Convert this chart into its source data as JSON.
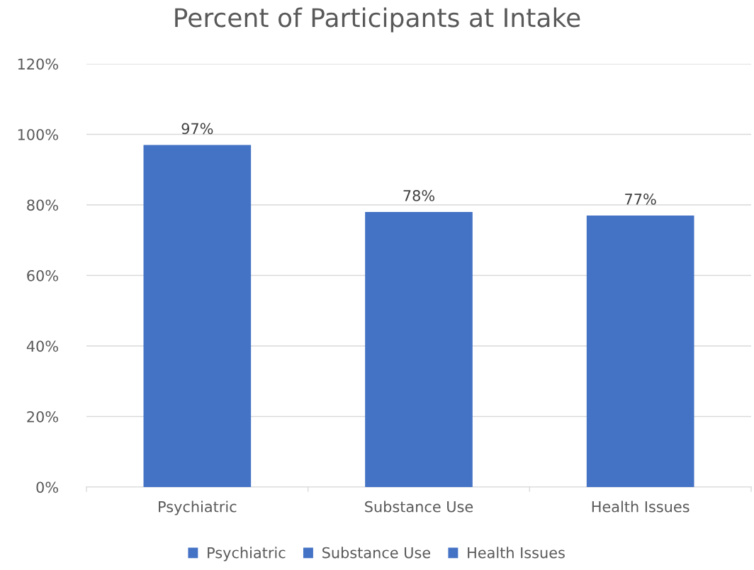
{
  "chart_data": {
    "type": "bar",
    "title": "Percent of Participants at Intake",
    "categories": [
      "Psychiatric",
      "Substance Use",
      "Health Issues"
    ],
    "stacked": true,
    "series": [
      {
        "name": "Psychiatric",
        "color": "#4472c4",
        "values": [
          97,
          null,
          null
        ],
        "value_labels": [
          "97%",
          null,
          null
        ]
      },
      {
        "name": "Substance Use",
        "color": "#4472c4",
        "values": [
          null,
          78,
          null
        ],
        "value_labels": [
          null,
          "78%",
          null
        ]
      },
      {
        "name": "Health Issues",
        "color": "#4472c4",
        "values": [
          null,
          null,
          77
        ],
        "value_labels": [
          null,
          null,
          "77%"
        ]
      }
    ],
    "ylim": [
      0,
      120
    ],
    "yticks": [
      {
        "value": 0,
        "label": "0%"
      },
      {
        "value": 20,
        "label": "20%"
      },
      {
        "value": 40,
        "label": "40%"
      },
      {
        "value": 60,
        "label": "60%"
      },
      {
        "value": 80,
        "label": "80%"
      },
      {
        "value": 100,
        "label": "100%"
      },
      {
        "value": 120,
        "label": "120%"
      }
    ],
    "grid": "y",
    "legend": "bottom"
  }
}
